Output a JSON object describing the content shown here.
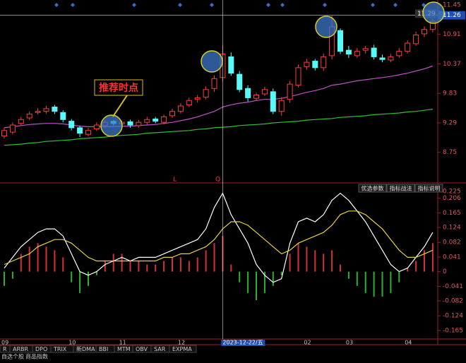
{
  "chart_data": [
    {
      "type": "candlestick",
      "open": [
        9.05,
        9.12,
        9.28,
        9.38,
        9.48,
        9.5,
        9.58,
        9.48,
        9.32,
        9.2,
        9.08,
        9.18,
        9.24,
        9.32,
        9.27,
        9.31,
        9.24,
        9.3,
        9.36,
        9.3,
        9.42,
        9.5,
        9.62,
        9.72,
        9.76,
        9.92,
        10.12,
        10.5,
        10.18,
        9.92,
        9.74,
        9.82,
        9.86,
        9.5,
        9.72,
        9.98,
        10.32,
        10.42,
        10.3,
        10.52,
        10.98,
        10.62,
        10.52,
        10.62,
        10.66,
        10.48,
        10.44,
        10.52,
        10.6,
        10.74,
        10.92,
        11.0
      ],
      "high": [
        9.2,
        9.3,
        9.4,
        9.5,
        9.56,
        9.6,
        9.62,
        9.52,
        9.36,
        9.24,
        9.2,
        9.3,
        9.34,
        9.34,
        9.33,
        9.35,
        9.34,
        9.4,
        9.4,
        9.44,
        9.55,
        9.65,
        9.75,
        9.8,
        9.96,
        10.16,
        10.72,
        10.58,
        10.24,
        9.98,
        9.84,
        9.95,
        9.92,
        9.76,
        10.06,
        10.36,
        10.46,
        10.46,
        10.56,
        11.25,
        11.02,
        10.7,
        10.66,
        10.7,
        10.72,
        10.54,
        10.55,
        10.66,
        10.8,
        10.96,
        11.06,
        11.2
      ],
      "low": [
        9.0,
        9.08,
        9.24,
        9.34,
        9.44,
        9.46,
        9.45,
        9.3,
        9.15,
        9.03,
        9.04,
        9.14,
        9.2,
        9.24,
        9.22,
        9.2,
        9.2,
        9.26,
        9.28,
        9.26,
        9.38,
        9.46,
        9.58,
        9.66,
        9.72,
        9.86,
        10.05,
        10.15,
        9.85,
        9.68,
        9.7,
        9.78,
        9.45,
        9.42,
        9.66,
        9.94,
        10.26,
        10.25,
        10.24,
        10.45,
        10.55,
        10.48,
        10.48,
        10.56,
        10.45,
        10.4,
        10.4,
        10.48,
        10.56,
        10.7,
        10.86,
        10.95
      ],
      "close": [
        9.15,
        9.25,
        9.35,
        9.45,
        9.5,
        9.55,
        9.5,
        9.35,
        9.2,
        9.1,
        9.15,
        9.25,
        9.3,
        9.28,
        9.3,
        9.25,
        9.3,
        9.35,
        9.32,
        9.4,
        9.5,
        9.6,
        9.7,
        9.75,
        9.9,
        10.1,
        10.55,
        10.2,
        9.9,
        9.75,
        9.8,
        9.9,
        9.5,
        9.7,
        10.0,
        10.3,
        10.4,
        10.3,
        10.5,
        11.05,
        10.6,
        10.55,
        10.6,
        10.65,
        10.5,
        10.45,
        10.5,
        10.6,
        10.75,
        10.9,
        11.0,
        11.15
      ],
      "lines": [
        {
          "color": "#c050c8",
          "values": [
            9.2,
            9.22,
            9.24,
            9.26,
            9.27,
            9.28,
            9.28,
            9.27,
            9.25,
            9.23,
            9.22,
            9.22,
            9.22,
            9.22,
            9.23,
            9.23,
            9.24,
            9.25,
            9.26,
            9.28,
            9.3,
            9.33,
            9.36,
            9.4,
            9.45,
            9.5,
            9.58,
            9.62,
            9.65,
            9.67,
            9.7,
            9.72,
            9.72,
            9.74,
            9.77,
            9.81,
            9.85,
            9.88,
            9.92,
            9.98,
            10.0,
            10.03,
            10.06,
            10.08,
            10.1,
            10.12,
            10.14,
            10.17,
            10.2,
            10.24,
            10.28,
            10.33
          ]
        },
        {
          "color": "#30c030",
          "values": [
            8.88,
            8.89,
            8.9,
            8.92,
            8.93,
            8.95,
            8.96,
            8.97,
            8.98,
            9.0,
            9.01,
            9.02,
            9.03,
            9.05,
            9.06,
            9.07,
            9.08,
            9.1,
            9.11,
            9.12,
            9.13,
            9.14,
            9.15,
            9.17,
            9.18,
            9.2,
            9.21,
            9.22,
            9.24,
            9.25,
            9.26,
            9.27,
            9.29,
            9.3,
            9.31,
            9.32,
            9.34,
            9.35,
            9.36,
            9.37,
            9.39,
            9.4,
            9.41,
            9.42,
            9.44,
            9.45,
            9.46,
            9.47,
            9.49,
            9.5,
            9.52,
            9.54
          ]
        }
      ],
      "up_color": "#ff3c3c",
      "down_color": "#54fcfc",
      "ylim": [
        8.19,
        11.54
      ],
      "yticks": [
        11.45,
        10.91,
        10.37,
        9.83,
        9.29,
        8.75
      ],
      "cursor_price": 11.26,
      "last_price": 11.29,
      "annotations": [
        "推荐时点",
        "L",
        "Q"
      ]
    },
    {
      "type": "macd",
      "categories": [
        "09",
        null,
        null,
        null,
        null,
        null,
        null,
        null,
        "10",
        null,
        null,
        null,
        null,
        null,
        "11",
        null,
        null,
        null,
        null,
        null,
        null,
        "12",
        null,
        null,
        null,
        null,
        "2023-12-22/五",
        null,
        null,
        null,
        null,
        null,
        null,
        null,
        null,
        null,
        "02",
        null,
        null,
        null,
        null,
        "03",
        null,
        null,
        null,
        null,
        null,
        null,
        "04",
        null,
        null,
        null
      ],
      "values": [
        -0.04,
        -0.02,
        0.05,
        0.07,
        0.08,
        0.07,
        0.06,
        0.04,
        -0.03,
        -0.06,
        -0.04,
        -0.01,
        0.03,
        0.05,
        0.05,
        0.03,
        0.03,
        0.02,
        0.02,
        0.03,
        0.04,
        0.04,
        0.03,
        0.04,
        0.06,
        0.08,
        0.1,
        0.02,
        -0.03,
        -0.06,
        -0.08,
        -0.06,
        -0.04,
        -0.01,
        0.05,
        0.08,
        0.07,
        0.06,
        0.05,
        0.06,
        0.02,
        -0.02,
        -0.04,
        -0.06,
        -0.07,
        -0.07,
        -0.06,
        -0.03,
        0.01,
        0.03,
        0.06,
        0.08
      ],
      "lines": [
        {
          "color": "#ffffff",
          "values": [
            0.01,
            0.04,
            0.07,
            0.09,
            0.11,
            0.12,
            0.12,
            0.1,
            0.05,
            0.0,
            -0.01,
            0.0,
            0.02,
            0.03,
            0.04,
            0.03,
            0.04,
            0.04,
            0.04,
            0.05,
            0.06,
            0.07,
            0.08,
            0.09,
            0.12,
            0.18,
            0.22,
            0.16,
            0.12,
            0.08,
            0.02,
            -0.01,
            -0.03,
            -0.02,
            0.08,
            0.14,
            0.15,
            0.14,
            0.16,
            0.2,
            0.22,
            0.2,
            0.17,
            0.14,
            0.1,
            0.06,
            0.02,
            0.0,
            0.01,
            0.04,
            0.07,
            0.11
          ]
        },
        {
          "color": "#e8d040",
          "values": [
            0.02,
            0.03,
            0.04,
            0.05,
            0.07,
            0.08,
            0.09,
            0.09,
            0.08,
            0.06,
            0.04,
            0.03,
            0.03,
            0.03,
            0.03,
            0.03,
            0.03,
            0.03,
            0.03,
            0.04,
            0.04,
            0.05,
            0.05,
            0.06,
            0.07,
            0.09,
            0.12,
            0.14,
            0.14,
            0.13,
            0.11,
            0.09,
            0.07,
            0.05,
            0.06,
            0.08,
            0.09,
            0.1,
            0.11,
            0.13,
            0.16,
            0.17,
            0.17,
            0.16,
            0.14,
            0.12,
            0.09,
            0.06,
            0.04,
            0.04,
            0.05,
            0.06
          ]
        }
      ],
      "up_color": "#d83030",
      "down_color": "#30b030",
      "ylim": [
        -0.189,
        0.243
      ],
      "yticks": [
        0.225,
        0.206,
        0.165,
        0.124,
        0.082,
        0.041,
        0,
        -0.041,
        -0.082,
        -0.124,
        -0.165
      ]
    }
  ],
  "buttons": [
    "优选参数",
    "指标战法",
    "指标说明"
  ],
  "tabs": [
    "R",
    "ARBR",
    "DPO",
    "TRIX",
    "新DMA",
    "BBI",
    "MTM",
    "OBV",
    "SAR",
    "EXPMA"
  ],
  "status_bar": [
    "自选个股",
    "商品指数"
  ]
}
